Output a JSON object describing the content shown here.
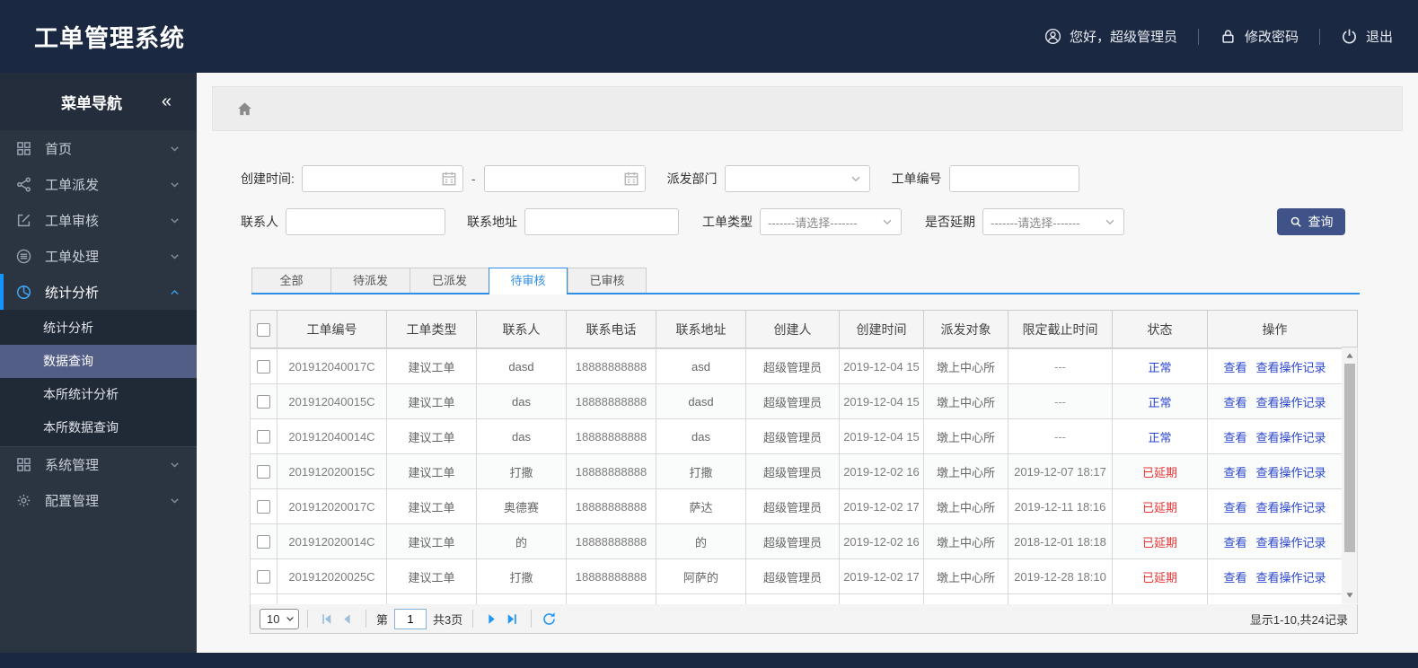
{
  "app": {
    "title": "工单管理系统"
  },
  "topbar": {
    "greeting": "您好，超级管理员",
    "change_password": "修改密码",
    "logout": "退出"
  },
  "sidebar": {
    "header": "菜单导航",
    "collapse": "«",
    "items": [
      {
        "id": "home",
        "icon": "grid",
        "label": "首页"
      },
      {
        "id": "dispatch",
        "icon": "share",
        "label": "工单派发"
      },
      {
        "id": "review",
        "icon": "edit",
        "label": "工单审核"
      },
      {
        "id": "process",
        "icon": "process",
        "label": "工单处理"
      },
      {
        "id": "stats",
        "icon": "pie",
        "label": "统计分析",
        "active": true,
        "children": [
          {
            "id": "stats-analysis",
            "label": "统计分析"
          },
          {
            "id": "data-query",
            "label": "数据查询",
            "active": true
          },
          {
            "id": "branch-stats",
            "label": "本所统计分析"
          },
          {
            "id": "branch-data-query",
            "label": "本所数据查询"
          }
        ]
      },
      {
        "id": "system",
        "icon": "grid",
        "label": "系统管理",
        "group_start": true
      },
      {
        "id": "config",
        "icon": "gear",
        "label": "配置管理"
      }
    ]
  },
  "filters": {
    "create_time_label": "创建时间:",
    "range_separator": "-",
    "dispatch_dept_label": "派发部门",
    "order_no_label": "工单编号",
    "contact_label": "联系人",
    "address_label": "联系地址",
    "order_type_label": "工单类型",
    "order_type_value": "-------请选择-------",
    "delay_label": "是否延期",
    "delay_value": "-------请选择-------",
    "search_button": "查询"
  },
  "tabs": [
    {
      "id": "all",
      "label": "全部"
    },
    {
      "id": "to-dispatch",
      "label": "待派发"
    },
    {
      "id": "dispatched",
      "label": "已派发"
    },
    {
      "id": "to-review",
      "label": "待审核",
      "active": true
    },
    {
      "id": "reviewed",
      "label": "已审核"
    }
  ],
  "table": {
    "headers": [
      "工单编号",
      "工单类型",
      "联系人",
      "联系电话",
      "联系地址",
      "创建人",
      "创建时间",
      "派发对象",
      "限定截止时间",
      "状态",
      "操作"
    ],
    "actions": {
      "view": "查看",
      "view_log": "查看操作记录"
    },
    "rows": [
      {
        "order_no": "201912040017C",
        "type": "建议工单",
        "contact": "dasd",
        "phone": "18888888888",
        "address": "asd",
        "creator": "超级管理员",
        "created": "2019-12-04 15",
        "target": "墩上中心所",
        "deadline": "---",
        "status": "正常",
        "delayed": false
      },
      {
        "order_no": "201912040015C",
        "type": "建议工单",
        "contact": "das",
        "phone": "18888888888",
        "address": "dasd",
        "creator": "超级管理员",
        "created": "2019-12-04 15",
        "target": "墩上中心所",
        "deadline": "---",
        "status": "正常",
        "delayed": false
      },
      {
        "order_no": "201912040014C",
        "type": "建议工单",
        "contact": "das",
        "phone": "18888888888",
        "address": "das",
        "creator": "超级管理员",
        "created": "2019-12-04 15",
        "target": "墩上中心所",
        "deadline": "---",
        "status": "正常",
        "delayed": false
      },
      {
        "order_no": "201912020015C",
        "type": "建议工单",
        "contact": "打撒",
        "phone": "18888888888",
        "address": "打撒",
        "creator": "超级管理员",
        "created": "2019-12-02 16",
        "target": "墩上中心所",
        "deadline": "2019-12-07 18:17",
        "status": "已延期",
        "delayed": true
      },
      {
        "order_no": "201912020017C",
        "type": "建议工单",
        "contact": "奥德赛",
        "phone": "18888888888",
        "address": "萨达",
        "creator": "超级管理员",
        "created": "2019-12-02 17",
        "target": "墩上中心所",
        "deadline": "2019-12-11 18:16",
        "status": "已延期",
        "delayed": true
      },
      {
        "order_no": "201912020014C",
        "type": "建议工单",
        "contact": "的",
        "phone": "18888888888",
        "address": "的",
        "creator": "超级管理员",
        "created": "2019-12-02 16",
        "target": "墩上中心所",
        "deadline": "2018-12-01 18:18",
        "status": "已延期",
        "delayed": true
      },
      {
        "order_no": "201912020025C",
        "type": "建议工单",
        "contact": "打撒",
        "phone": "18888888888",
        "address": "阿萨的",
        "creator": "超级管理员",
        "created": "2019-12-02 17",
        "target": "墩上中心所",
        "deadline": "2019-12-28 18:10",
        "status": "已延期",
        "delayed": true
      }
    ]
  },
  "pagination": {
    "page_size": "10",
    "page_prefix": "第",
    "current_page": "1",
    "total_pages": "共3页",
    "summary": "显示1-10,共24记录"
  },
  "colors": {
    "header_bg": "#1b2842",
    "sidebar_bg": "#2b3441",
    "submenu_active_bg": "#525e86",
    "accent_blue": "#1296fb",
    "tab_blue": "#2f8fe8",
    "link_blue": "#2b46cf",
    "status_normal": "#2b46cf",
    "status_delayed": "#e83333",
    "search_button_bg": "#3f5388",
    "pager_blue": "#2196f3"
  }
}
